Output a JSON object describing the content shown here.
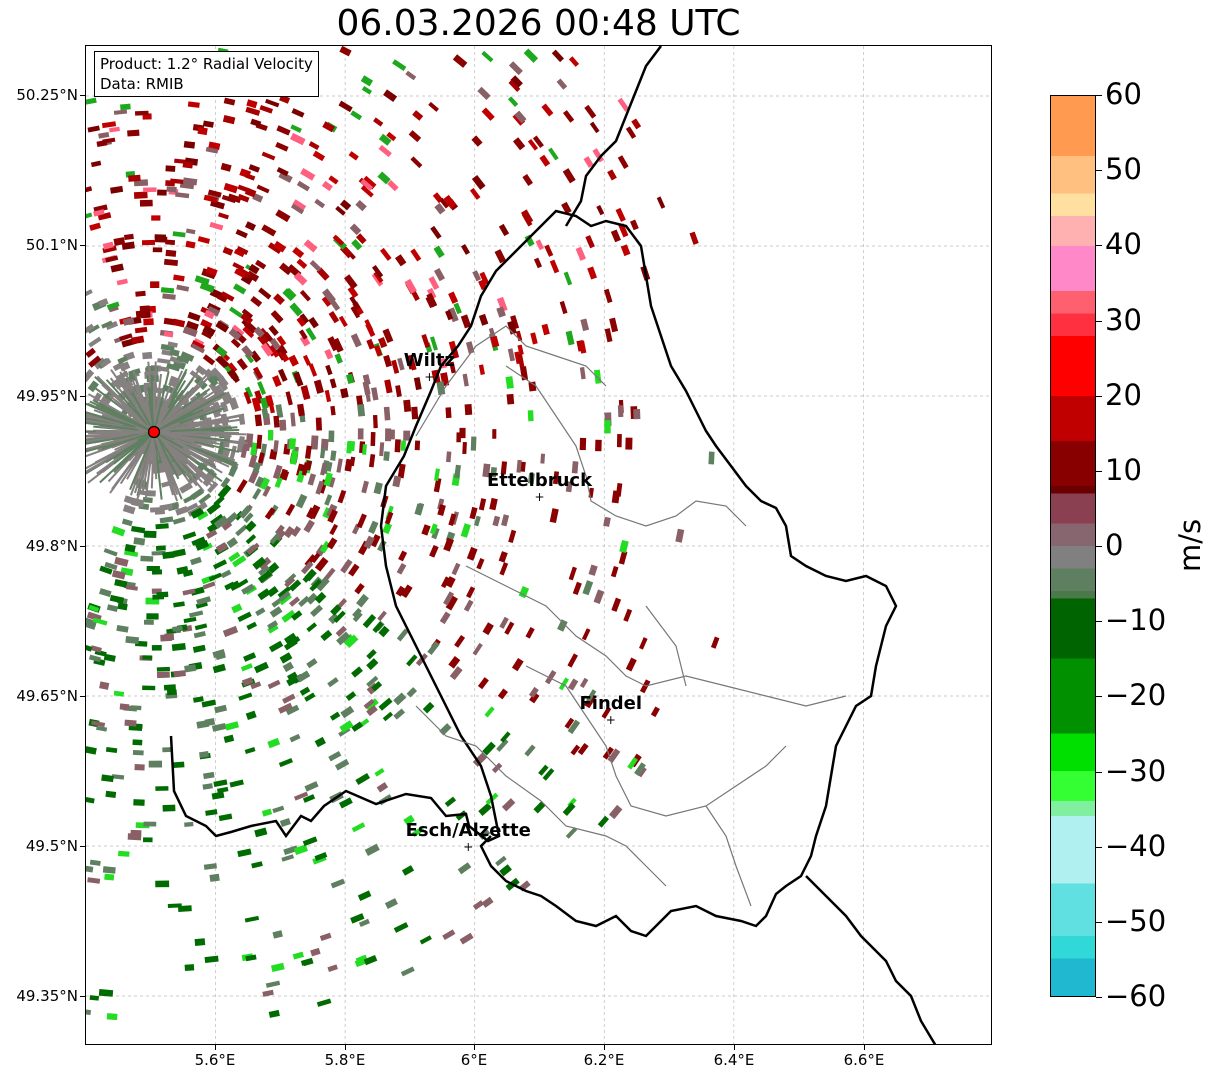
{
  "title": "06.03.2026 00:48 UTC",
  "info_box": {
    "product": "Product: 1.2° Radial Velocity",
    "source": "Data: RMIB"
  },
  "axes": {
    "y_ticks": [
      "50.25°N",
      "50.1°N",
      "49.95°N",
      "49.8°N",
      "49.65°N",
      "49.5°N",
      "49.35°N"
    ],
    "x_ticks": [
      "5.6°E",
      "5.8°E",
      "6°E",
      "6.2°E",
      "6.4°E",
      "6.6°E"
    ],
    "lat_range": [
      49.3,
      50.3
    ],
    "lon_range": [
      5.4,
      6.8
    ]
  },
  "colorbar": {
    "unit": "m/s",
    "ticks": [
      "60",
      "50",
      "40",
      "30",
      "20",
      "10",
      "0",
      "−10",
      "−20",
      "−30",
      "−40",
      "−50",
      "−60"
    ],
    "range": [
      -60,
      60
    ]
  },
  "radar_site": {
    "lon": 5.505,
    "lat": 49.914,
    "color": "#ff0000"
  },
  "cities": [
    {
      "name": "Wiltz",
      "lon": 5.93,
      "lat": 49.97
    },
    {
      "name": "Ettelbruck",
      "lon": 6.1,
      "lat": 49.85
    },
    {
      "name": "Findel",
      "lon": 6.21,
      "lat": 49.627
    },
    {
      "name": "Esch/Alzette",
      "lon": 5.99,
      "lat": 49.5
    }
  ],
  "colors": {
    "strong_inbound": "#1f77b4",
    "inbound_green": "#00a000",
    "outbound_red": "#8b0000",
    "outbound_max": "#ffa050",
    "near_zero": "#808080"
  }
}
